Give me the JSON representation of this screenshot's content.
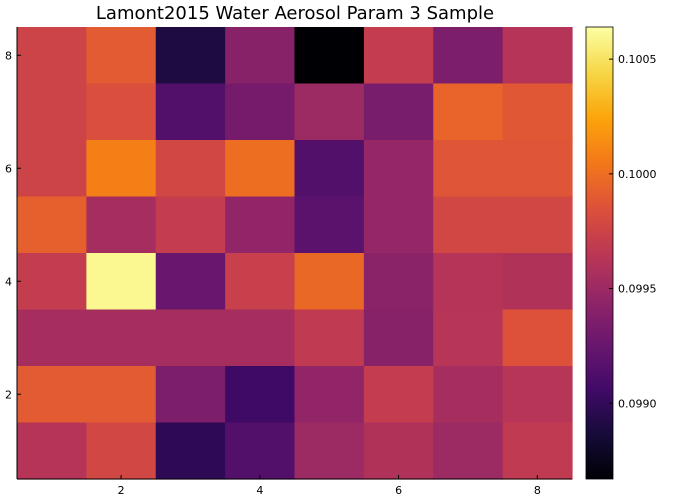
{
  "chart_data": {
    "type": "heatmap",
    "title": "Lamont2015 Water Aerosol Param 3 Sample",
    "xlabel": "",
    "ylabel": "",
    "x_ticks": [
      "2",
      "4",
      "6",
      "8"
    ],
    "y_ticks": [
      "2",
      "4",
      "6",
      "8"
    ],
    "x_range": [
      0.5,
      8.5
    ],
    "y_range": [
      0.5,
      8.5
    ],
    "colorbar": {
      "colormap": "inferno",
      "range": [
        0.09867,
        0.10064
      ],
      "ticks": [
        "0.0990",
        "0.0995",
        "0.1000",
        "0.1005"
      ]
    },
    "rows_top_to_bottom": [
      [
        0.09975,
        0.0999,
        0.0989,
        0.0994,
        0.09867,
        0.0997,
        0.09935,
        0.09962
      ],
      [
        0.09975,
        0.09983,
        0.09915,
        0.09932,
        0.0995,
        0.09933,
        0.09995,
        0.09988
      ],
      [
        0.09975,
        0.10008,
        0.09978,
        0.1,
        0.09915,
        0.09947,
        0.09987,
        0.09987
      ],
      [
        0.09993,
        0.09955,
        0.0997,
        0.09945,
        0.09918,
        0.09947,
        0.09978,
        0.09978
      ],
      [
        0.0997,
        0.1006,
        0.09925,
        0.09972,
        0.09997,
        0.09942,
        0.09962,
        0.0996
      ],
      [
        0.09955,
        0.09955,
        0.09955,
        0.09955,
        0.09968,
        0.0994,
        0.09963,
        0.09985
      ],
      [
        0.0999,
        0.0999,
        0.09935,
        0.09905,
        0.09945,
        0.0997,
        0.09955,
        0.09963
      ],
      [
        0.09962,
        0.09978,
        0.09898,
        0.09915,
        0.0995,
        0.0996,
        0.0995,
        0.09968
      ]
    ]
  }
}
